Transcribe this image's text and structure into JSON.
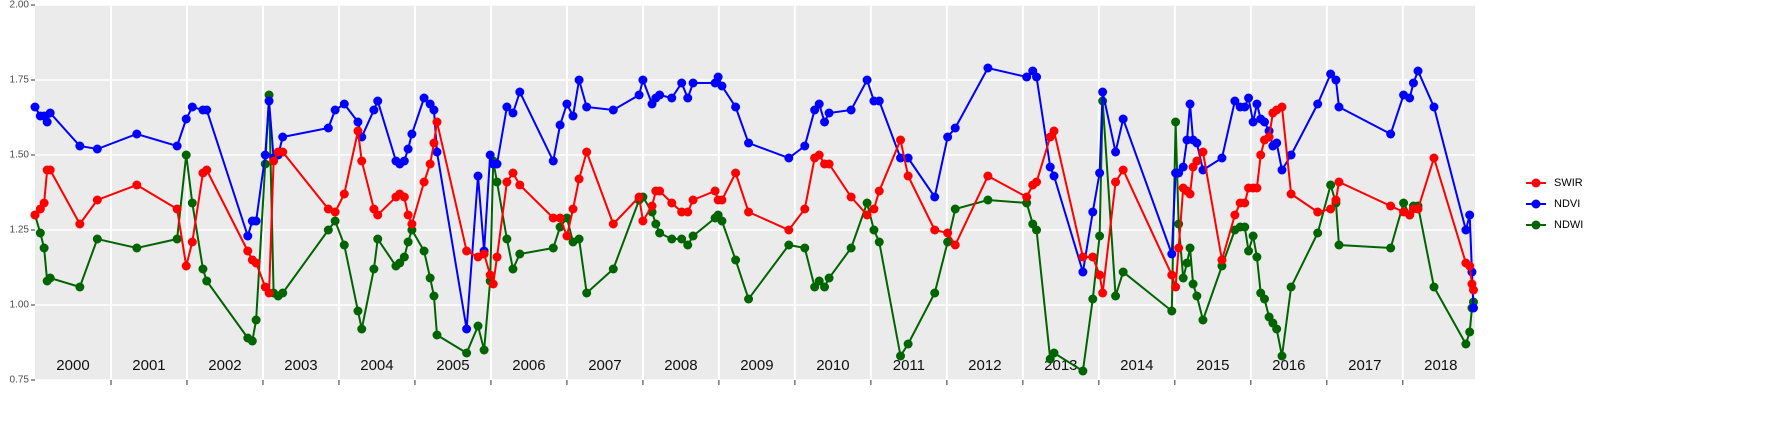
{
  "chart_data": {
    "type": "line",
    "x": [
      2000.0,
      2000.07,
      2000.12,
      2000.16,
      2000.2,
      2000.59,
      2000.82,
      2001.34,
      2001.87,
      2001.99,
      2002.07,
      2002.21,
      2002.26,
      2002.8,
      2002.86,
      2002.91,
      2003.03,
      2003.08,
      2003.14,
      2003.2,
      2003.26,
      2003.86,
      2003.95,
      2004.07,
      2004.25,
      2004.3,
      2004.46,
      2004.51,
      2004.75,
      2004.8,
      2004.86,
      2004.91,
      2004.96,
      2005.12,
      2005.2,
      2005.25,
      2005.29,
      2005.68,
      2005.83,
      2005.91,
      2005.99,
      2006.03,
      2006.08,
      2006.21,
      2006.29,
      2006.38,
      2006.82,
      2006.91,
      2007.0,
      2007.08,
      2007.16,
      2007.26,
      2007.61,
      2007.95,
      2008.0,
      2008.12,
      2008.17,
      2008.22,
      2008.38,
      2008.51,
      2008.59,
      2008.66,
      2008.95,
      2008.99,
      2009.04,
      2009.22,
      2009.39,
      2009.92,
      2010.13,
      2010.26,
      2010.32,
      2010.39,
      2010.45,
      2010.74,
      2010.95,
      2011.04,
      2011.11,
      2011.39,
      2011.49,
      2011.84,
      2012.01,
      2012.11,
      2012.54,
      2013.05,
      2013.13,
      2013.18,
      2013.36,
      2013.41,
      2013.79,
      2013.92,
      2014.01,
      2014.05,
      2014.22,
      2014.32,
      2014.96,
      2015.01,
      2015.05,
      2015.11,
      2015.16,
      2015.2,
      2015.24,
      2015.29,
      2015.37,
      2015.62,
      2015.79,
      2015.86,
      2015.92,
      2015.97,
      2016.03,
      2016.08,
      2016.13,
      2016.18,
      2016.24,
      2016.29,
      2016.34,
      2016.41,
      2016.53,
      2016.88,
      2017.05,
      2017.12,
      2017.16,
      2017.84,
      2018.01,
      2018.09,
      2018.14,
      2018.2,
      2018.41,
      2018.83,
      2018.88,
      2018.91,
      2018.93
    ],
    "series": [
      {
        "name": "SWIR",
        "color": "#ff0000",
        "values": [
          1.3,
          1.32,
          1.34,
          1.45,
          1.45,
          1.27,
          1.35,
          1.4,
          1.32,
          1.13,
          1.21,
          1.44,
          1.45,
          1.18,
          1.15,
          1.14,
          1.06,
          1.04,
          1.48,
          1.51,
          1.51,
          1.32,
          1.31,
          1.37,
          1.58,
          1.48,
          1.32,
          1.3,
          1.36,
          1.37,
          1.36,
          1.3,
          1.27,
          1.41,
          1.47,
          1.54,
          1.61,
          1.18,
          1.16,
          1.17,
          1.1,
          1.07,
          1.16,
          1.41,
          1.44,
          1.4,
          1.29,
          1.29,
          1.23,
          1.32,
          1.42,
          1.51,
          1.27,
          1.36,
          1.28,
          1.33,
          1.38,
          1.38,
          1.34,
          1.31,
          1.31,
          1.35,
          1.38,
          1.35,
          1.35,
          1.44,
          1.31,
          1.25,
          1.32,
          1.49,
          1.5,
          1.47,
          1.47,
          1.36,
          1.3,
          1.32,
          1.38,
          1.55,
          1.43,
          1.25,
          1.24,
          1.2,
          1.43,
          1.36,
          1.4,
          1.41,
          1.56,
          1.58,
          1.16,
          1.16,
          1.1,
          1.04,
          1.41,
          1.45,
          1.1,
          1.06,
          1.19,
          1.39,
          1.38,
          1.37,
          1.46,
          1.48,
          1.51,
          1.15,
          1.3,
          1.34,
          1.34,
          1.39,
          1.39,
          1.39,
          1.5,
          1.55,
          1.56,
          1.64,
          1.65,
          1.66,
          1.37,
          1.31,
          1.32,
          1.35,
          1.41,
          1.33,
          1.31,
          1.3,
          1.32,
          1.32,
          1.49,
          1.14,
          1.13,
          1.07,
          1.05
        ]
      },
      {
        "name": "NDVI",
        "color": "#0000ff",
        "values": [
          1.66,
          1.63,
          1.63,
          1.61,
          1.64,
          1.53,
          1.52,
          1.57,
          1.53,
          1.62,
          1.66,
          1.65,
          1.65,
          1.23,
          1.28,
          1.28,
          1.5,
          1.68,
          1.49,
          1.5,
          1.56,
          1.59,
          1.65,
          1.67,
          1.61,
          1.56,
          1.65,
          1.68,
          1.48,
          1.47,
          1.48,
          1.52,
          1.57,
          1.69,
          1.67,
          1.65,
          1.51,
          0.92,
          1.43,
          1.18,
          1.5,
          1.47,
          1.47,
          1.66,
          1.64,
          1.71,
          1.48,
          1.6,
          1.67,
          1.63,
          1.75,
          1.66,
          1.65,
          1.7,
          1.75,
          1.67,
          1.69,
          1.7,
          1.69,
          1.74,
          1.69,
          1.74,
          1.74,
          1.76,
          1.73,
          1.66,
          1.54,
          1.49,
          1.53,
          1.65,
          1.67,
          1.61,
          1.64,
          1.65,
          1.75,
          1.68,
          1.68,
          1.49,
          1.49,
          1.36,
          1.56,
          1.59,
          1.79,
          1.76,
          1.78,
          1.76,
          1.46,
          1.43,
          1.11,
          1.31,
          1.44,
          1.71,
          1.51,
          1.62,
          1.17,
          1.44,
          1.44,
          1.46,
          1.55,
          1.67,
          1.55,
          1.54,
          1.45,
          1.49,
          1.68,
          1.66,
          1.66,
          1.69,
          1.61,
          1.67,
          1.62,
          1.61,
          1.58,
          1.53,
          1.54,
          1.45,
          1.5,
          1.67,
          1.77,
          1.75,
          1.66,
          1.57,
          1.7,
          1.69,
          1.74,
          1.78,
          1.66,
          1.25,
          1.3,
          1.11,
          0.99
        ]
      },
      {
        "name": "NDWI",
        "color": "#006400",
        "values": [
          1.3,
          1.24,
          1.19,
          1.08,
          1.09,
          1.06,
          1.22,
          1.19,
          1.22,
          1.5,
          1.34,
          1.12,
          1.08,
          0.89,
          0.88,
          0.95,
          1.47,
          1.7,
          1.04,
          1.03,
          1.04,
          1.25,
          1.28,
          1.2,
          0.98,
          0.92,
          1.12,
          1.22,
          1.13,
          1.14,
          1.16,
          1.21,
          1.25,
          1.18,
          1.09,
          1.03,
          0.9,
          0.84,
          0.93,
          0.85,
          1.08,
          1.48,
          1.41,
          1.22,
          1.12,
          1.17,
          1.19,
          1.26,
          1.29,
          1.21,
          1.22,
          1.04,
          1.12,
          1.35,
          1.36,
          1.31,
          1.27,
          1.24,
          1.22,
          1.22,
          1.2,
          1.23,
          1.29,
          1.3,
          1.28,
          1.15,
          1.02,
          1.2,
          1.19,
          1.06,
          1.08,
          1.06,
          1.09,
          1.19,
          1.34,
          1.25,
          1.21,
          0.83,
          0.87,
          1.04,
          1.21,
          1.32,
          1.35,
          1.34,
          1.27,
          1.25,
          0.82,
          0.84,
          0.78,
          1.02,
          1.23,
          1.68,
          1.03,
          1.11,
          0.98,
          1.61,
          1.27,
          1.09,
          1.14,
          1.19,
          1.07,
          1.03,
          0.95,
          1.13,
          1.25,
          1.26,
          1.26,
          1.18,
          1.23,
          1.16,
          1.04,
          1.02,
          0.96,
          0.94,
          0.92,
          0.83,
          1.06,
          1.24,
          1.4,
          1.34,
          1.2,
          1.19,
          1.34,
          1.3,
          1.33,
          1.33,
          1.06,
          0.87,
          0.91,
          0.99,
          1.01
        ]
      }
    ],
    "year_labels": [
      "2000",
      "2001",
      "2002",
      "2003",
      "2004",
      "2005",
      "2006",
      "2007",
      "2008",
      "2009",
      "2010",
      "2011",
      "2012",
      "2013",
      "2014",
      "2015",
      "2016",
      "2017",
      "2018"
    ],
    "xlim": [
      2000,
      2018.95
    ],
    "xticks": [
      2001,
      2002,
      2003,
      2004,
      2005,
      2006,
      2007,
      2008,
      2009,
      2010,
      2011,
      2012,
      2013,
      2014,
      2015,
      2016,
      2017,
      2018
    ],
    "ylim": [
      0.75,
      2.0
    ],
    "yticks": [
      {
        "value": 0.75,
        "label": "0.75"
      },
      {
        "value": 1.0,
        "label": "1.00"
      },
      {
        "value": 1.25,
        "label": "1.25"
      },
      {
        "value": 1.5,
        "label": "1.50"
      },
      {
        "value": 1.75,
        "label": "1.75"
      },
      {
        "value": 2.0,
        "label": "2.00"
      }
    ],
    "grid": true
  }
}
